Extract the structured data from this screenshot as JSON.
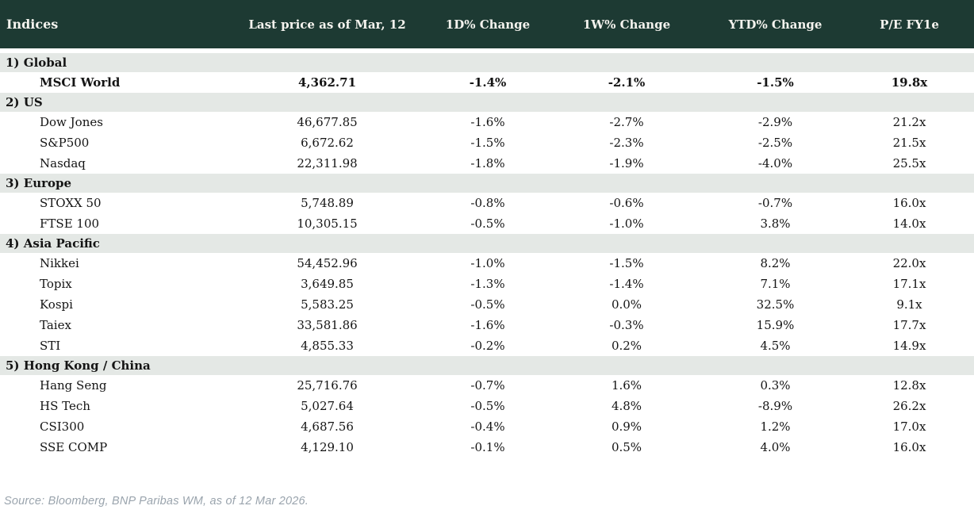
{
  "colors": {
    "negative": "#c00e1e",
    "positive": "#148235",
    "header_bg": "#1d3a33",
    "header_fg": "#f4f3ee",
    "section_bg": "#e4e8e5"
  },
  "chart_data": {
    "type": "table",
    "title": "Indices",
    "columns": [
      "Indices",
      "Last price as of Mar, 12",
      "1D% Change",
      "1W% Change",
      "YTD% Change",
      "P/E FY1e"
    ],
    "sections": [
      {
        "label": "1) Global",
        "rows": [
          {
            "name": "MSCI World",
            "price": "4,362.71",
            "d1": "-1.4%",
            "d1_dir": "neg",
            "w1": "-2.1%",
            "w1_dir": "neg",
            "ytd": "-1.5%",
            "ytd_dir": "neg",
            "pe": "19.8x",
            "emphasis": true
          }
        ]
      },
      {
        "label": "2) US",
        "rows": [
          {
            "name": "Dow Jones",
            "price": "46,677.85",
            "d1": "-1.6%",
            "d1_dir": "neg",
            "w1": "-2.7%",
            "w1_dir": "neg",
            "ytd": "-2.9%",
            "ytd_dir": "neg",
            "pe": "21.2x",
            "emphasis": false
          },
          {
            "name": "S&P500",
            "price": "6,672.62",
            "d1": "-1.5%",
            "d1_dir": "neg",
            "w1": "-2.3%",
            "w1_dir": "neg",
            "ytd": "-2.5%",
            "ytd_dir": "neg",
            "pe": "21.5x",
            "emphasis": false
          },
          {
            "name": "Nasdaq",
            "price": "22,311.98",
            "d1": "-1.8%",
            "d1_dir": "neg",
            "w1": "-1.9%",
            "w1_dir": "neg",
            "ytd": "-4.0%",
            "ytd_dir": "neg",
            "pe": "25.5x",
            "emphasis": false
          }
        ]
      },
      {
        "label": "3) Europe",
        "rows": [
          {
            "name": "STOXX 50",
            "price": "5,748.89",
            "d1": "-0.8%",
            "d1_dir": "neg",
            "w1": "-0.6%",
            "w1_dir": "neg",
            "ytd": "-0.7%",
            "ytd_dir": "neg",
            "pe": "16.0x",
            "emphasis": false
          },
          {
            "name": "FTSE 100",
            "price": "10,305.15",
            "d1": "-0.5%",
            "d1_dir": "neg",
            "w1": "-1.0%",
            "w1_dir": "neg",
            "ytd": "3.8%",
            "ytd_dir": "pos",
            "pe": "14.0x",
            "emphasis": false
          }
        ]
      },
      {
        "label": "4) Asia Pacific",
        "rows": [
          {
            "name": "Nikkei",
            "price": "54,452.96",
            "d1": "-1.0%",
            "d1_dir": "neg",
            "w1": "-1.5%",
            "w1_dir": "neg",
            "ytd": "8.2%",
            "ytd_dir": "pos",
            "pe": "22.0x",
            "emphasis": false
          },
          {
            "name": "Topix",
            "price": "3,649.85",
            "d1": "-1.3%",
            "d1_dir": "neg",
            "w1": "-1.4%",
            "w1_dir": "neg",
            "ytd": "7.1%",
            "ytd_dir": "pos",
            "pe": "17.1x",
            "emphasis": false
          },
          {
            "name": "Kospi",
            "price": "5,583.25",
            "d1": "-0.5%",
            "d1_dir": "neg",
            "w1": "0.0%",
            "w1_dir": "neg",
            "ytd": "32.5%",
            "ytd_dir": "pos",
            "pe": "9.1x",
            "emphasis": false
          },
          {
            "name": "Taiex",
            "price": "33,581.86",
            "d1": "-1.6%",
            "d1_dir": "neg",
            "w1": "-0.3%",
            "w1_dir": "neg",
            "ytd": "15.9%",
            "ytd_dir": "pos",
            "pe": "17.7x",
            "emphasis": false
          },
          {
            "name": "STI",
            "price": "4,855.33",
            "d1": "-0.2%",
            "d1_dir": "neg",
            "w1": "0.2%",
            "w1_dir": "pos",
            "ytd": "4.5%",
            "ytd_dir": "pos",
            "pe": "14.9x",
            "emphasis": false
          }
        ]
      },
      {
        "label": "5) Hong Kong / China",
        "rows": [
          {
            "name": "Hang Seng",
            "price": "25,716.76",
            "d1": "-0.7%",
            "d1_dir": "neg",
            "w1": "1.6%",
            "w1_dir": "pos",
            "ytd": "0.3%",
            "ytd_dir": "pos",
            "pe": "12.8x",
            "emphasis": false
          },
          {
            "name": "HS Tech",
            "price": "5,027.64",
            "d1": "-0.5%",
            "d1_dir": "neg",
            "w1": "4.8%",
            "w1_dir": "pos",
            "ytd": "-8.9%",
            "ytd_dir": "neg",
            "pe": "26.2x",
            "emphasis": false
          },
          {
            "name": "CSI300",
            "price": "4,687.56",
            "d1": "-0.4%",
            "d1_dir": "neg",
            "w1": "0.9%",
            "w1_dir": "pos",
            "ytd": "1.2%",
            "ytd_dir": "pos",
            "pe": "17.0x",
            "emphasis": false
          },
          {
            "name": "SSE COMP",
            "price": "4,129.10",
            "d1": "-0.1%",
            "d1_dir": "neg",
            "w1": "0.5%",
            "w1_dir": "pos",
            "ytd": "4.0%",
            "ytd_dir": "pos",
            "pe": "16.0x",
            "emphasis": false
          }
        ]
      }
    ]
  },
  "footer": {
    "source": "Source: Bloomberg, BNP Paribas WM, as of 12 Mar 2026."
  }
}
